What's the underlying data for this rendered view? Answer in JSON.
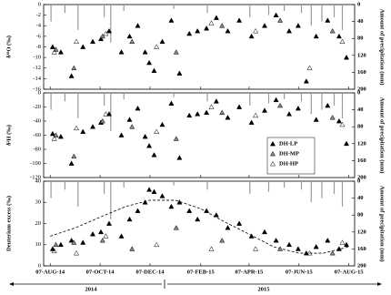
{
  "chart_data": [
    {
      "type": "scatter",
      "ylabel": "δ¹⁸O (‰)",
      "y2label": "Amount of precipitation (mm)",
      "xlim": [
        "2014-07-30",
        "2015-08-14"
      ],
      "ylim": [
        -16,
        0
      ],
      "yticks": [
        -16,
        -14,
        -12,
        -10,
        -8,
        -6,
        -4,
        -2,
        0
      ],
      "y2lim": [
        0,
        200
      ],
      "y2ticks": [
        0,
        40,
        80,
        120,
        160,
        200
      ],
      "y2_inverted": true,
      "precipitation": {
        "color": "#999999",
        "x": [
          "2014-08-08",
          "2014-08-25",
          "2014-09-10",
          "2014-10-12",
          "2014-10-20",
          "2014-11-05",
          "2015-01-05",
          "2015-02-15",
          "2015-04-08",
          "2015-05-01",
          "2015-05-20",
          "2015-06-10",
          "2015-06-22",
          "2015-07-05",
          "2015-07-20",
          "2015-07-30"
        ],
        "values": [
          40,
          20,
          60,
          30,
          90,
          15,
          10,
          20,
          30,
          25,
          15,
          20,
          50,
          40,
          30,
          60
        ]
      },
      "series": [
        {
          "marker_fill": "#000000",
          "x": [
            "2014-08-10",
            "2014-08-20",
            "2014-09-02",
            "2014-09-16",
            "2014-09-28",
            "2014-10-08",
            "2014-10-18",
            "2014-11-02",
            "2014-11-12",
            "2014-11-22",
            "2014-12-01",
            "2014-12-06",
            "2014-12-12",
            "2014-12-22",
            "2015-01-02",
            "2015-01-12",
            "2015-01-24",
            "2015-02-03",
            "2015-02-14",
            "2015-02-26",
            "2015-03-12",
            "2015-03-26",
            "2015-04-10",
            "2015-04-26",
            "2015-05-10",
            "2015-05-26",
            "2015-06-06",
            "2015-06-16",
            "2015-06-28",
            "2015-07-12",
            "2015-07-26",
            "2015-08-04"
          ],
          "values": [
            -8,
            -9,
            -13.5,
            -8,
            -7,
            -6.5,
            -5,
            -9,
            -6,
            -4,
            -9,
            -11,
            -12.5,
            -7,
            -3,
            -13,
            -5.5,
            -5,
            -4.5,
            -2.5,
            -5,
            -3,
            -6,
            -4,
            -2,
            -5,
            -4,
            -14.5,
            -6,
            -3,
            -6,
            -10
          ]
        },
        {
          "marker_fill": "#888888",
          "x": [
            "2014-08-14",
            "2014-09-05",
            "2014-10-10",
            "2014-11-15",
            "2015-01-08",
            "2015-03-05",
            "2015-05-15",
            "2015-07-18"
          ],
          "values": [
            -8.5,
            -12,
            -6,
            -7,
            -9,
            -4,
            -3,
            -5
          ]
        },
        {
          "marker_fill": "none",
          "x": [
            "2014-08-12",
            "2014-09-08",
            "2014-10-14",
            "2014-12-15",
            "2015-02-20",
            "2015-04-15",
            "2015-06-20",
            "2015-07-30"
          ],
          "values": [
            -9,
            -7,
            -5.5,
            -8,
            -3.5,
            -5,
            -12,
            -7
          ]
        }
      ]
    },
    {
      "type": "scatter",
      "ylabel": "δ²H (‰)",
      "y2label": "Amount of precipitation (mm)",
      "xlim": [
        "2014-07-30",
        "2015-08-14"
      ],
      "ylim": [
        -120,
        0
      ],
      "yticks": [
        -120,
        -100,
        -80,
        -60,
        -40,
        -20,
        0
      ],
      "y2lim": [
        0,
        200
      ],
      "y2ticks": [
        0,
        40,
        80,
        120,
        160,
        200
      ],
      "y2_inverted": true,
      "legend": true,
      "precipitation": {
        "color": "#999999",
        "x": [
          "2014-08-08",
          "2014-08-25",
          "2014-09-10",
          "2014-10-12",
          "2014-10-20",
          "2014-11-05",
          "2015-01-05",
          "2015-02-15",
          "2015-04-08",
          "2015-05-01",
          "2015-05-20",
          "2015-06-10",
          "2015-06-22",
          "2015-07-05",
          "2015-07-20",
          "2015-07-30"
        ],
        "values": [
          40,
          20,
          60,
          30,
          90,
          15,
          10,
          20,
          30,
          25,
          15,
          20,
          50,
          40,
          30,
          60
        ]
      },
      "series": [
        {
          "name": "DH-LP",
          "marker_fill": "#000000",
          "x": [
            "2014-08-10",
            "2014-08-20",
            "2014-09-02",
            "2014-09-16",
            "2014-09-28",
            "2014-10-08",
            "2014-10-18",
            "2014-11-02",
            "2014-11-12",
            "2014-11-22",
            "2014-12-01",
            "2014-12-06",
            "2014-12-12",
            "2014-12-22",
            "2015-01-02",
            "2015-01-12",
            "2015-01-24",
            "2015-02-03",
            "2015-02-14",
            "2015-02-26",
            "2015-03-12",
            "2015-03-26",
            "2015-04-10",
            "2015-04-26",
            "2015-05-10",
            "2015-05-26",
            "2015-06-06",
            "2015-06-16",
            "2015-06-28",
            "2015-07-12",
            "2015-07-26",
            "2015-08-04"
          ],
          "values": [
            -58,
            -62,
            -100,
            -55,
            -48,
            -42,
            -30,
            -60,
            -38,
            -22,
            -62,
            -75,
            -88,
            -45,
            -15,
            -92,
            -32,
            -30,
            -28,
            -12,
            -35,
            -20,
            -42,
            -25,
            -10,
            -30,
            -22,
            -105,
            -38,
            -18,
            -40,
            -72
          ]
        },
        {
          "name": "DH-MP",
          "marker_fill": "#888888",
          "x": [
            "2014-08-14",
            "2014-09-05",
            "2014-10-10",
            "2014-11-15",
            "2015-01-08",
            "2015-03-05",
            "2015-05-15",
            "2015-07-18"
          ],
          "values": [
            -60,
            -90,
            -40,
            -48,
            -65,
            -28,
            -18,
            -35
          ]
        },
        {
          "name": "DH-HP",
          "marker_fill": "none",
          "x": [
            "2014-08-12",
            "2014-09-08",
            "2014-10-14",
            "2014-12-15",
            "2015-02-20",
            "2015-04-15",
            "2015-06-20",
            "2015-07-30"
          ],
          "values": [
            -65,
            -50,
            -30,
            -55,
            -20,
            -32,
            -90,
            -45
          ]
        }
      ]
    },
    {
      "type": "scatter",
      "ylabel": "Deuterium excess (‰)",
      "y2label": "Amount of precipitation (mm)",
      "xlim": [
        "2014-07-30",
        "2015-08-14"
      ],
      "ylim": [
        0,
        40
      ],
      "yticks": [
        0,
        10,
        20,
        30,
        40
      ],
      "y2lim": [
        0,
        200
      ],
      "y2ticks": [
        0,
        40,
        80,
        120,
        160,
        200
      ],
      "y2_inverted": true,
      "xticks": [
        {
          "value": "2014-08-07",
          "label": "07-AUG-14"
        },
        {
          "value": "2014-10-07",
          "label": "07-OCT-14"
        },
        {
          "value": "2014-12-07",
          "label": "07-DEC-14"
        },
        {
          "value": "2015-02-07",
          "label": "07-FEB-15"
        },
        {
          "value": "2015-04-07",
          "label": "07-APR-15"
        },
        {
          "value": "2015-06-07",
          "label": "07-JUN-15"
        },
        {
          "value": "2015-08-07",
          "label": "07-AUG-15"
        }
      ],
      "year_labels": [
        "2014",
        "2015"
      ],
      "precipitation": {
        "color": "#999999",
        "x": [
          "2014-08-08",
          "2014-08-25",
          "2014-09-10",
          "2014-10-12",
          "2014-10-20",
          "2014-11-05",
          "2015-01-05",
          "2015-02-15",
          "2015-04-08",
          "2015-05-01",
          "2015-05-20",
          "2015-06-10",
          "2015-06-22",
          "2015-07-05",
          "2015-07-20",
          "2015-07-30"
        ],
        "values": [
          40,
          20,
          60,
          30,
          90,
          15,
          10,
          20,
          30,
          25,
          15,
          20,
          50,
          40,
          30,
          60
        ]
      },
      "fit": {
        "x": [
          "2014-08-07",
          "2014-09-07",
          "2014-10-07",
          "2014-11-07",
          "2014-12-07",
          "2015-01-07",
          "2015-02-07",
          "2015-03-07",
          "2015-04-07",
          "2015-05-07",
          "2015-06-07",
          "2015-07-07",
          "2015-08-07"
        ],
        "values": [
          14,
          18,
          23,
          28,
          31,
          31,
          27,
          21,
          15,
          9,
          6,
          6,
          9
        ]
      },
      "series": [
        {
          "marker_fill": "#000000",
          "x": [
            "2014-08-10",
            "2014-08-20",
            "2014-09-02",
            "2014-09-16",
            "2014-09-28",
            "2014-10-08",
            "2014-10-18",
            "2014-11-02",
            "2014-11-12",
            "2014-11-22",
            "2014-12-01",
            "2014-12-06",
            "2014-12-12",
            "2014-12-22",
            "2015-01-02",
            "2015-01-12",
            "2015-01-24",
            "2015-02-03",
            "2015-02-14",
            "2015-02-26",
            "2015-03-12",
            "2015-03-26",
            "2015-04-10",
            "2015-04-26",
            "2015-05-10",
            "2015-05-26",
            "2015-06-06",
            "2015-06-16",
            "2015-06-28",
            "2015-07-12",
            "2015-07-26",
            "2015-08-04"
          ],
          "values": [
            8,
            10,
            12,
            11,
            15,
            16,
            20,
            14,
            22,
            26,
            30,
            36,
            35,
            33,
            28,
            30,
            26,
            22,
            26,
            24,
            18,
            20,
            14,
            16,
            12,
            10,
            8,
            6,
            9,
            12,
            8,
            10
          ]
        },
        {
          "marker_fill": "#888888",
          "x": [
            "2014-08-14",
            "2014-09-05",
            "2014-10-10",
            "2014-11-15",
            "2015-01-08",
            "2015-03-05",
            "2015-05-15",
            "2015-07-18"
          ],
          "values": [
            10,
            11,
            12,
            8,
            18,
            12,
            8,
            6
          ]
        },
        {
          "marker_fill": "none",
          "x": [
            "2014-08-12",
            "2014-09-08",
            "2014-10-14",
            "2014-12-15",
            "2015-02-20",
            "2015-04-15",
            "2015-06-20",
            "2015-07-30"
          ],
          "values": [
            7,
            6,
            14,
            10,
            8,
            8,
            6,
            11
          ]
        }
      ]
    }
  ]
}
